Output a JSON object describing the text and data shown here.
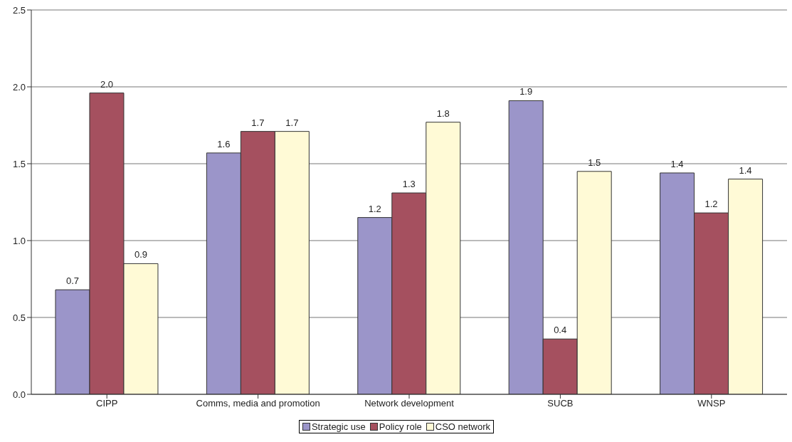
{
  "chart_data": {
    "type": "bar",
    "categories": [
      "CIPP",
      "Comms, media and promotion",
      "Network development",
      "SUCB",
      "WNSP"
    ],
    "series": [
      {
        "name": "Strategic use",
        "color": "#9b95c9",
        "values": [
          0.68,
          1.57,
          1.15,
          1.91,
          1.44
        ],
        "value_labels": [
          "0.7",
          "1.6",
          "1.2",
          "1.9",
          "1.4"
        ]
      },
      {
        "name": "Policy role",
        "color": "#a5505f",
        "values": [
          1.96,
          1.71,
          1.31,
          0.36,
          1.18
        ],
        "value_labels": [
          "2.0",
          "1.7",
          "1.3",
          "0.4",
          "1.2"
        ]
      },
      {
        "name": "CSO network",
        "color": "#fffad6",
        "values": [
          0.85,
          1.71,
          1.77,
          1.45,
          1.4
        ],
        "value_labels": [
          "0.9",
          "1.7",
          "1.8",
          "1.5",
          "1.4"
        ]
      }
    ],
    "ylim": [
      0,
      2.5
    ],
    "yticks": [
      {
        "value": 0,
        "label": "0.0"
      },
      {
        "value": 0.5,
        "label": "0.5"
      },
      {
        "value": 1,
        "label": "1.0"
      },
      {
        "value": 1.5,
        "label": "1.5"
      },
      {
        "value": 2,
        "label": "2.0"
      },
      {
        "value": 2.5,
        "label": "2.5"
      }
    ],
    "grid": "y",
    "legend": "bottom"
  }
}
